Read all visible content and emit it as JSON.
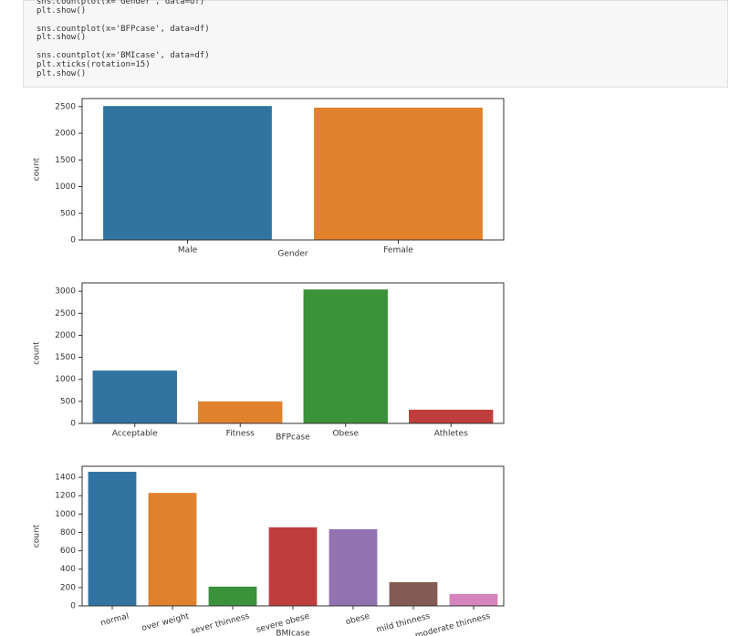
{
  "code": {
    "lines": [
      "sns.countplot(x='Gender', data=df)",
      "plt.show()",
      "sns.countplot(x='BFPcase', data=df)",
      "plt.show()",
      "sns.countplot(x='BMIcase', data=df)",
      "plt.xticks(rotation=15)",
      "plt.show()"
    ]
  },
  "chart_data": [
    {
      "type": "bar",
      "categories": [
        "Male",
        "Female"
      ],
      "values": [
        2510,
        2480
      ],
      "colors": [
        "#3274a1",
        "#e1812c"
      ],
      "xlabel": "Gender",
      "ylabel": "count",
      "ylim": [
        0,
        2650
      ],
      "yticks": [
        0,
        500,
        1000,
        1500,
        2000,
        2500
      ]
    },
    {
      "type": "bar",
      "categories": [
        "Acceptable",
        "Fitness",
        "Obese",
        "Athletes"
      ],
      "values": [
        1200,
        500,
        3040,
        310
      ],
      "colors": [
        "#3274a1",
        "#e1812c",
        "#3a923a",
        "#c03d3e"
      ],
      "xlabel": "BFPcase",
      "ylabel": "count",
      "ylim": [
        0,
        3190
      ],
      "yticks": [
        0,
        500,
        1000,
        1500,
        2000,
        2500,
        3000
      ]
    },
    {
      "type": "bar",
      "categories": [
        "normal",
        "over weight",
        "sever thinness",
        "severe obese",
        "obese",
        "mild thinness",
        "moderate thinness"
      ],
      "values": [
        1460,
        1230,
        210,
        855,
        835,
        258,
        130
      ],
      "colors": [
        "#3274a1",
        "#e1812c",
        "#3a923a",
        "#c03d3e",
        "#9372b2",
        "#845b53",
        "#d684bd"
      ],
      "xlabel": "BMIcase",
      "ylabel": "count",
      "ylim": [
        0,
        1520
      ],
      "yticks": [
        0,
        200,
        400,
        600,
        800,
        1000,
        1200,
        1400
      ],
      "xtick_rotation": 15
    }
  ]
}
